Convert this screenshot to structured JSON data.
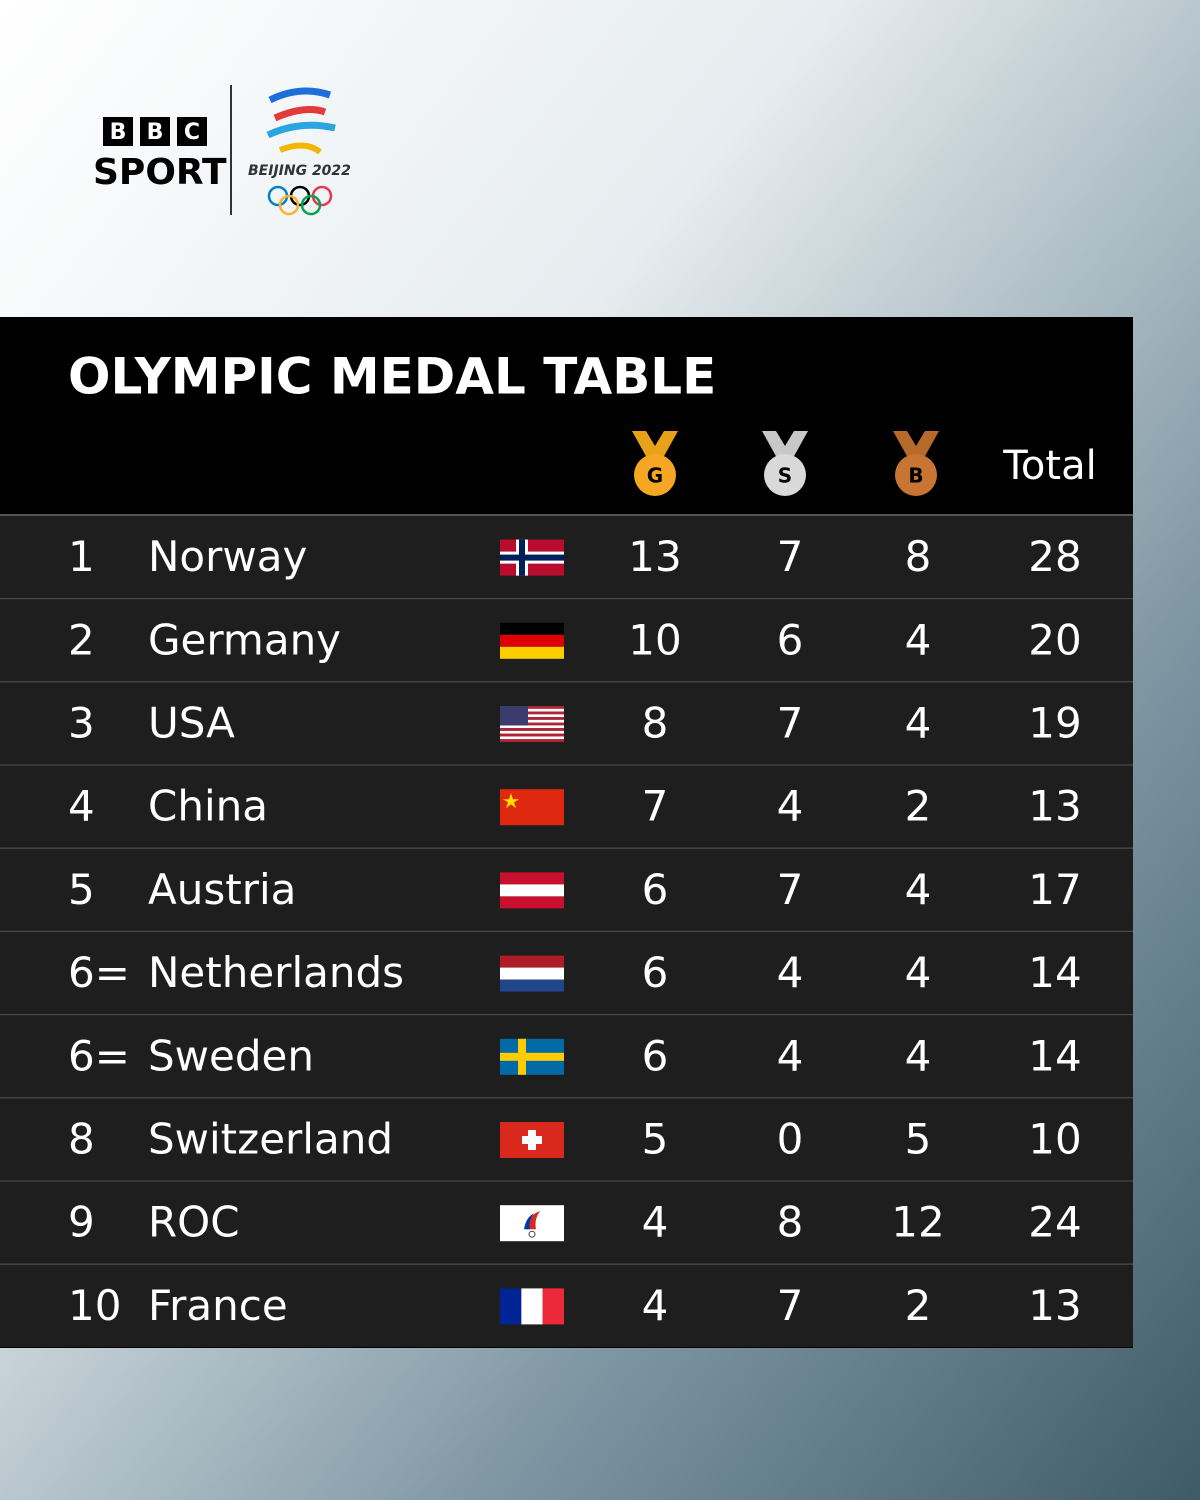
{
  "logo": {
    "bbc": [
      "B",
      "B",
      "C"
    ],
    "sport": "SPORT",
    "games": "BEIJING 2022"
  },
  "table": {
    "title": "OLYMPIC MEDAL TABLE",
    "headers": {
      "gold": "G",
      "silver": "S",
      "bronze": "B",
      "total": "Total"
    },
    "rows": [
      [
        "1",
        "Norway",
        "13",
        "7",
        "8",
        "28"
      ],
      [
        "2",
        "Germany",
        "10",
        "6",
        "4",
        "20"
      ],
      [
        "3",
        "USA",
        "8",
        "7",
        "4",
        "19"
      ],
      [
        "4",
        "China",
        "7",
        "4",
        "2",
        "13"
      ],
      [
        "5",
        "Austria",
        "6",
        "7",
        "4",
        "17"
      ],
      [
        "6=",
        "Netherlands",
        "6",
        "4",
        "4",
        "14"
      ],
      [
        "6=",
        "Sweden",
        "6",
        "4",
        "4",
        "14"
      ],
      [
        "8",
        "Switzerland",
        "5",
        "0",
        "5",
        "10"
      ],
      [
        "9",
        "ROC",
        "4",
        "8",
        "12",
        "24"
      ],
      [
        "10",
        "France",
        "4",
        "7",
        "2",
        "13"
      ]
    ]
  }
}
